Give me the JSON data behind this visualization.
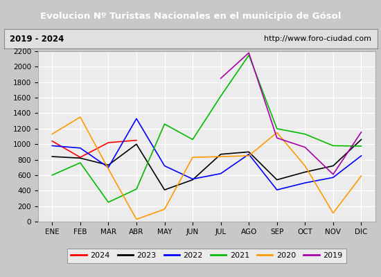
{
  "title": "Evolucion Nº Turistas Nacionales en el municipio de Gósol",
  "subtitle_left": "2019 - 2024",
  "subtitle_right": "http://www.foro-ciudad.com",
  "months": [
    "ENE",
    "FEB",
    "MAR",
    "ABR",
    "MAY",
    "JUN",
    "JUL",
    "AGO",
    "SEP",
    "OCT",
    "NOV",
    "DIC"
  ],
  "series": {
    "2024": [
      1040,
      830,
      1020,
      1050,
      null,
      null,
      null,
      null,
      null,
      null,
      null,
      null
    ],
    "2023": [
      840,
      820,
      730,
      1000,
      410,
      540,
      870,
      900,
      540,
      640,
      720,
      1060
    ],
    "2022": [
      980,
      950,
      700,
      1330,
      720,
      550,
      620,
      870,
      410,
      500,
      570,
      850
    ],
    "2021": [
      600,
      760,
      250,
      420,
      1260,
      1060,
      1620,
      2150,
      1200,
      1130,
      980,
      975
    ],
    "2020": [
      1130,
      1350,
      680,
      30,
      160,
      830,
      840,
      850,
      1150,
      720,
      110,
      590
    ],
    "2019": [
      null,
      null,
      null,
      null,
      null,
      null,
      1850,
      2180,
      1080,
      960,
      610,
      1155
    ]
  },
  "colors": {
    "2024": "#ff0000",
    "2023": "#000000",
    "2022": "#0000ff",
    "2021": "#00bb00",
    "2020": "#ff9900",
    "2019": "#aa00aa"
  },
  "ylim": [
    0,
    2200
  ],
  "yticks": [
    0,
    200,
    400,
    600,
    800,
    1000,
    1200,
    1400,
    1600,
    1800,
    2000,
    2200
  ],
  "title_bg": "#4499cc",
  "title_color": "#ffffff",
  "subtitle_bg": "#e0e0e0",
  "plot_bg": "#ececec",
  "grid_color": "#ffffff",
  "outer_bg": "#c8c8c8",
  "legend_years": [
    "2024",
    "2023",
    "2022",
    "2021",
    "2020",
    "2019"
  ]
}
